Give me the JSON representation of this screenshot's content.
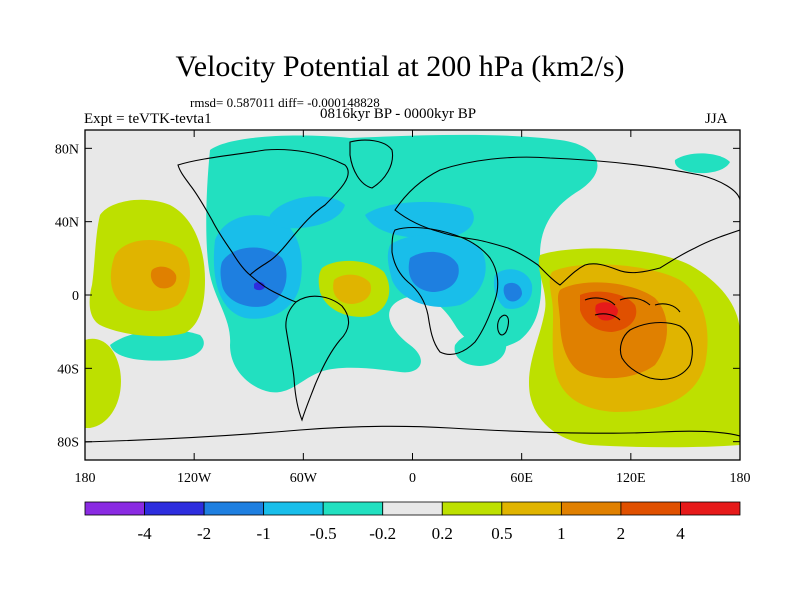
{
  "title": "Velocity Potential at 200 hPa (km2/s)",
  "stats": "rmsd= 0.587011 diff= -0.000148828",
  "experiment": "Expt = teVTK-tevta1",
  "period": "0816kyr BP - 0000kyr BP",
  "season": "JJA",
  "map": {
    "lon_range": [
      -180,
      180
    ],
    "lat_range": [
      -90,
      90
    ],
    "x_ticks": [
      {
        "lon": -180,
        "label": "180"
      },
      {
        "lon": -120,
        "label": "120W"
      },
      {
        "lon": -60,
        "label": "60W"
      },
      {
        "lon": 0,
        "label": "0"
      },
      {
        "lon": 60,
        "label": "60E"
      },
      {
        "lon": 120,
        "label": "120E"
      },
      {
        "lon": 180,
        "label": "180"
      }
    ],
    "y_ticks": [
      {
        "lat": 80,
        "label": "80N"
      },
      {
        "lat": 40,
        "label": "40N"
      },
      {
        "lat": 0,
        "label": "0"
      },
      {
        "lat": -40,
        "label": "40S"
      },
      {
        "lat": -80,
        "label": "80S"
      }
    ]
  },
  "colorbar": {
    "colors": [
      "#8A2BE2",
      "#2D2DDE",
      "#1E7FE0",
      "#19BEEA",
      "#22E0C0",
      "#E8E8E8",
      "#BDE000",
      "#E0B400",
      "#E08000",
      "#E05000",
      "#E61A1A"
    ],
    "labels": [
      "-4",
      "-2",
      "-1",
      "-0.5",
      "-0.2",
      "0.2",
      "0.5",
      "1",
      "2",
      "4"
    ]
  },
  "colors": {
    "background": "#E8E8E8",
    "cyan": "#22E0C0",
    "light_blue": "#19BEEA",
    "blue": "#1E7FE0",
    "dark_blue": "#2D2DDE",
    "yellow_green": "#BDE000",
    "gold": "#E0B400",
    "orange": "#E08000",
    "red_orange": "#E05000",
    "red": "#E61A1A",
    "coast": "#000000"
  }
}
